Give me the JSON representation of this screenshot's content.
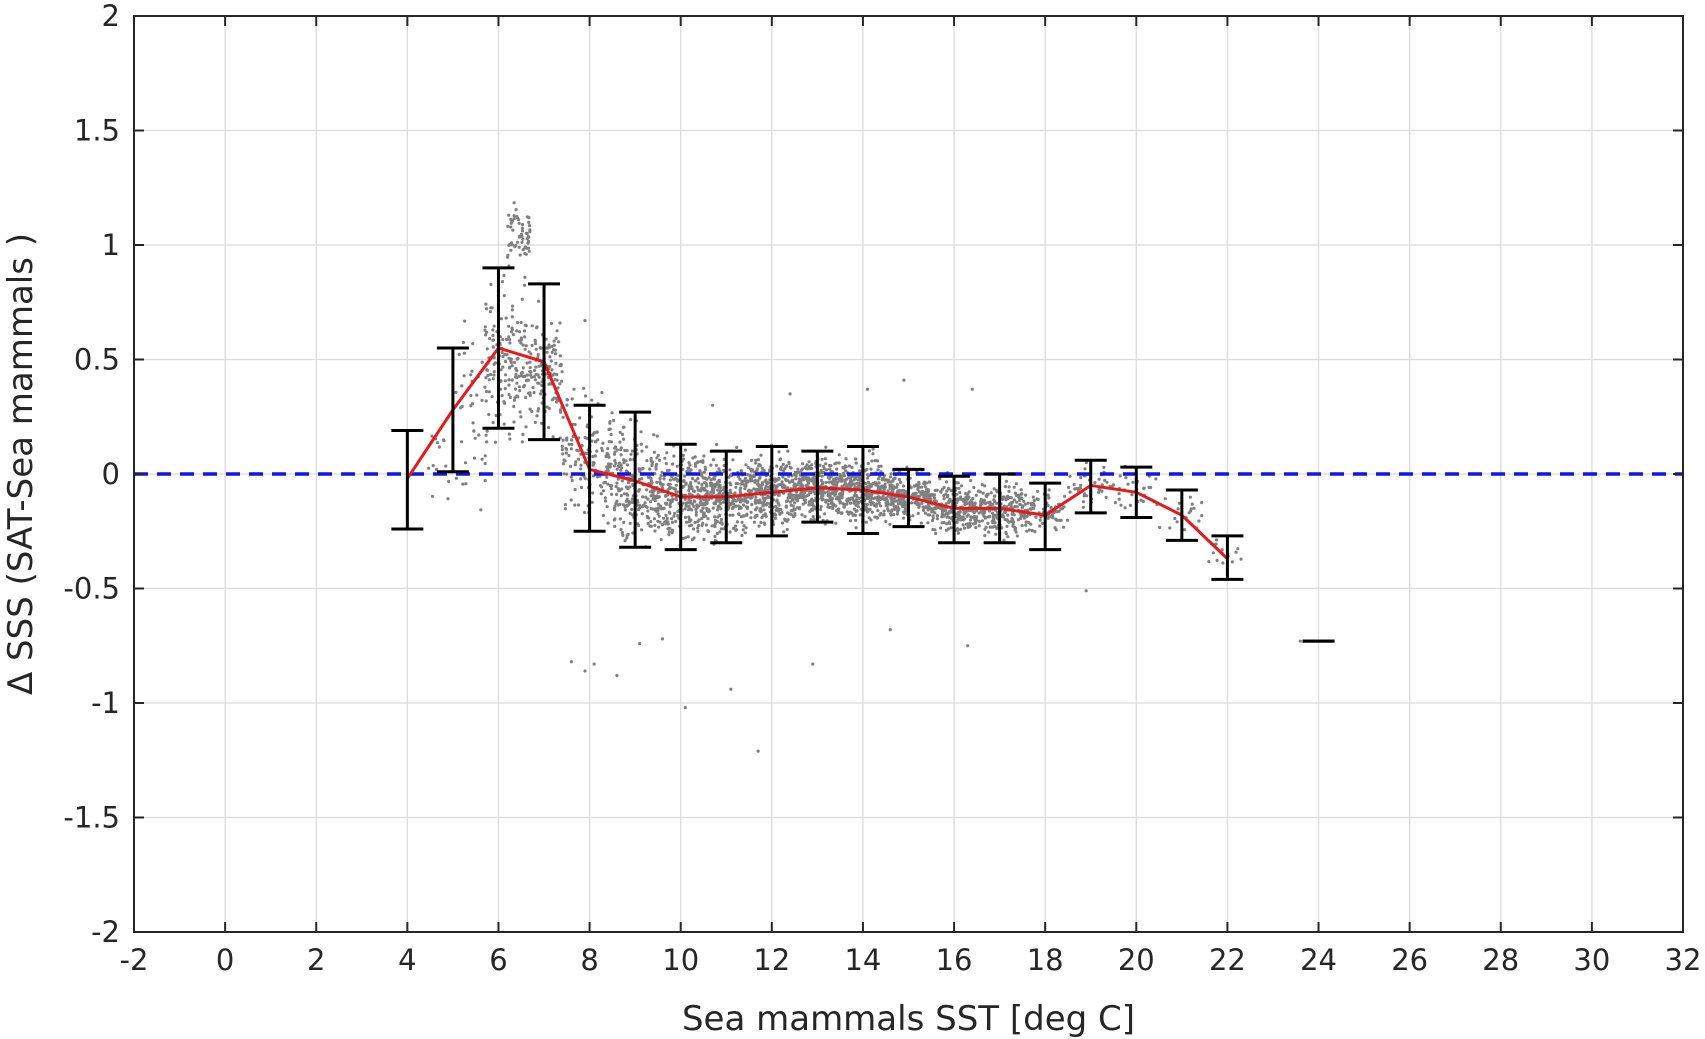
{
  "chart_data": {
    "type": "scatter",
    "title": "",
    "xlabel": "Sea mammals  SST [deg C]",
    "ylabel": "Δ SSS (SAT-Sea mammals )",
    "xlim": [
      -2,
      32
    ],
    "ylim": [
      -2,
      2
    ],
    "xticks": [
      -2,
      0,
      2,
      4,
      6,
      8,
      10,
      12,
      14,
      16,
      18,
      20,
      22,
      24,
      26,
      28,
      30,
      32
    ],
    "yticks": [
      -2,
      -1.5,
      -1,
      -0.5,
      0,
      0.5,
      1,
      1.5,
      2
    ],
    "xtick_labels": [
      "-2",
      "0",
      "2",
      "4",
      "6",
      "8",
      "10",
      "12",
      "14",
      "16",
      "18",
      "20",
      "22",
      "24",
      "26",
      "28",
      "30",
      "32"
    ],
    "ytick_labels": [
      "-2",
      "-1.5",
      "-1",
      "-0.5",
      "0",
      "0.5",
      "1",
      "1.5",
      "2"
    ],
    "grid": true,
    "colors": {
      "scatter": "#808080",
      "mean_line": "#e8191b",
      "zero_line": "#1414e6",
      "error_bars": "#000000",
      "grid": "#dcdcdc",
      "axes": "#262626"
    },
    "series": [
      {
        "kind": "zero_reference",
        "style": "dashed",
        "y": 0
      },
      {
        "kind": "binned_mean",
        "x": [
          4,
          5,
          6,
          7,
          8,
          9,
          10,
          11,
          12,
          13,
          14,
          15,
          16,
          17,
          18,
          19,
          20,
          21,
          22
        ],
        "y": [
          -0.02,
          0.28,
          0.55,
          0.49,
          0.02,
          -0.03,
          -0.1,
          -0.1,
          -0.08,
          -0.06,
          -0.07,
          -0.1,
          -0.15,
          -0.15,
          -0.18,
          -0.05,
          -0.08,
          -0.18,
          -0.37
        ]
      },
      {
        "kind": "error_bars",
        "x": [
          4,
          5,
          6,
          7,
          8,
          9,
          10,
          11,
          12,
          13,
          14,
          15,
          16,
          17,
          18,
          19,
          20,
          21,
          22,
          24
        ],
        "lower": [
          -0.24,
          0.01,
          0.2,
          0.15,
          -0.25,
          -0.32,
          -0.33,
          -0.3,
          -0.27,
          -0.21,
          -0.26,
          -0.23,
          -0.3,
          -0.3,
          -0.33,
          -0.17,
          -0.19,
          -0.29,
          -0.46,
          -0.73
        ],
        "upper": [
          0.19,
          0.55,
          0.9,
          0.83,
          0.3,
          0.27,
          0.13,
          0.1,
          0.12,
          0.1,
          0.12,
          0.02,
          -0.01,
          0.0,
          -0.04,
          0.06,
          0.03,
          -0.07,
          -0.27,
          -0.73
        ]
      },
      {
        "kind": "raw_points",
        "description": "gray scatter of individual observations",
        "bins": [
          {
            "x_range": [
              4.4,
              5.0
            ],
            "center": 0.05,
            "spread": 0.18,
            "count": 14
          },
          {
            "x_range": [
              5.0,
              5.8
            ],
            "center": 0.25,
            "spread": 0.35,
            "count": 40
          },
          {
            "x_range": [
              5.7,
              6.6
            ],
            "center": 0.5,
            "spread": 0.3,
            "count": 150
          },
          {
            "x_range": [
              6.2,
              6.7
            ],
            "center": 1.05,
            "spread": 0.12,
            "count": 60
          },
          {
            "x_range": [
              6.6,
              7.4
            ],
            "center": 0.45,
            "spread": 0.22,
            "count": 140
          },
          {
            "x_range": [
              7.4,
              8.5
            ],
            "center": 0.05,
            "spread": 0.25,
            "count": 150
          },
          {
            "x_range": [
              8.5,
              9.5
            ],
            "center": -0.05,
            "spread": 0.22,
            "count": 220
          },
          {
            "x_range": [
              9.5,
              10.5
            ],
            "center": -0.09,
            "spread": 0.18,
            "count": 260
          },
          {
            "x_range": [
              10.5,
              11.5
            ],
            "center": -0.1,
            "spread": 0.15,
            "count": 280
          },
          {
            "x_range": [
              11.5,
              12.5
            ],
            "center": -0.08,
            "spread": 0.14,
            "count": 300
          },
          {
            "x_range": [
              12.5,
              13.5
            ],
            "center": -0.06,
            "spread": 0.12,
            "count": 330
          },
          {
            "x_range": [
              13.5,
              14.5
            ],
            "center": -0.07,
            "spread": 0.12,
            "count": 300
          },
          {
            "x_range": [
              14.5,
              15.5
            ],
            "center": -0.1,
            "spread": 0.1,
            "count": 260
          },
          {
            "x_range": [
              15.5,
              16.5
            ],
            "center": -0.15,
            "spread": 0.1,
            "count": 230
          },
          {
            "x_range": [
              16.5,
              17.5
            ],
            "center": -0.15,
            "spread": 0.1,
            "count": 200
          },
          {
            "x_range": [
              17.5,
              18.5
            ],
            "center": -0.17,
            "spread": 0.09,
            "count": 90
          },
          {
            "x_range": [
              18.5,
              19.5
            ],
            "center": -0.05,
            "spread": 0.08,
            "count": 40
          },
          {
            "x_range": [
              19.5,
              20.5
            ],
            "center": -0.07,
            "spread": 0.08,
            "count": 30
          },
          {
            "x_range": [
              20.5,
              21.5
            ],
            "center": -0.17,
            "spread": 0.07,
            "count": 20
          },
          {
            "x_range": [
              21.5,
              22.3
            ],
            "center": -0.36,
            "spread": 0.06,
            "count": 15
          }
        ],
        "outliers": [
          [
            7.6,
            -0.82
          ],
          [
            7.9,
            -0.86
          ],
          [
            8.1,
            -0.83
          ],
          [
            8.6,
            -0.88
          ],
          [
            9.1,
            -0.74
          ],
          [
            9.6,
            -0.72
          ],
          [
            10.1,
            -1.02
          ],
          [
            11.1,
            -0.94
          ],
          [
            11.7,
            -1.21
          ],
          [
            12.9,
            -0.83
          ],
          [
            14.6,
            -0.68
          ],
          [
            16.3,
            -0.75
          ],
          [
            18.9,
            -0.51
          ],
          [
            23.6,
            -0.73
          ],
          [
            7.9,
            0.67
          ],
          [
            10.7,
            0.3
          ],
          [
            12.4,
            0.35
          ],
          [
            14.1,
            0.37
          ],
          [
            14.9,
            0.41
          ],
          [
            16.4,
            0.37
          ]
        ]
      }
    ]
  }
}
